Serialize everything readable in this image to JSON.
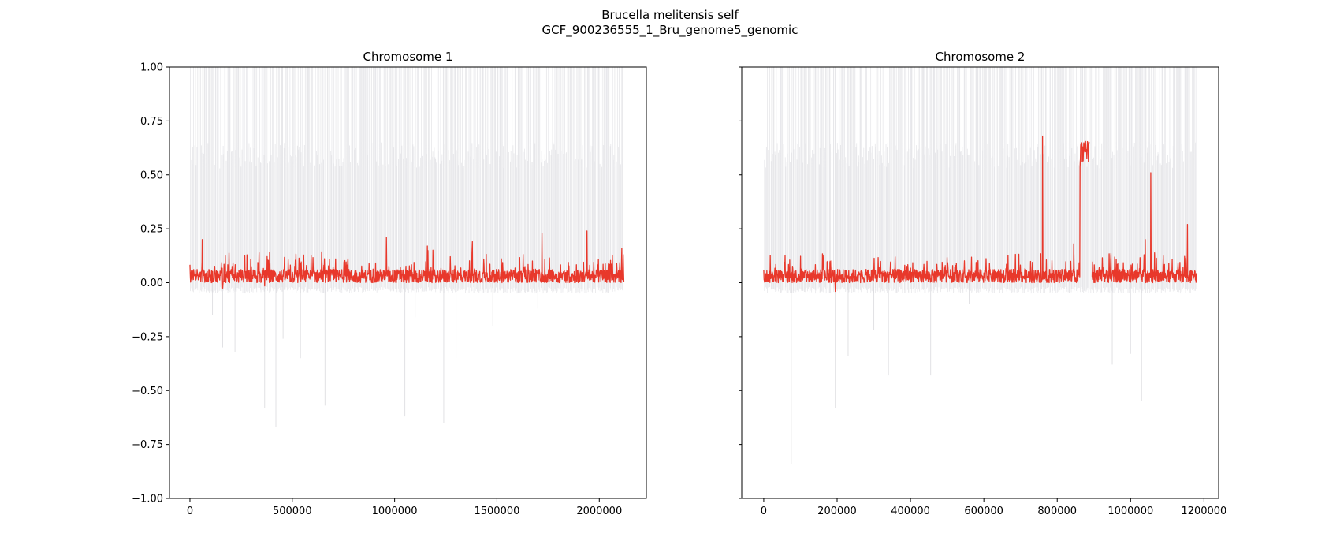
{
  "figure": {
    "title_line1": "Brucella melitensis self",
    "title_line2": "GCF_900236555_1_Bru_genome5_genomic"
  },
  "colors": {
    "signal": "#e8382b",
    "background_band": "#d4d4d8",
    "axis": "#000000"
  },
  "chart_data": [
    {
      "type": "line",
      "title": "Chromosome 1",
      "xlabel": "",
      "ylabel": "",
      "xlim": [
        -100000,
        2230000
      ],
      "ylim": [
        -1.0,
        1.0
      ],
      "x_ticks": [
        0,
        500000,
        1000000,
        1500000,
        2000000
      ],
      "x_tick_labels": [
        "0",
        "500000",
        "1000000",
        "1500000",
        "2000000"
      ],
      "y_ticks": [
        -1.0,
        -0.75,
        -0.5,
        -0.25,
        0.0,
        0.25,
        0.5,
        0.75,
        1.0
      ],
      "y_tick_labels": [
        "−1.00",
        "−0.75",
        "−0.50",
        "−0.25",
        "0.00",
        "0.25",
        "0.50",
        "0.75",
        "1.00"
      ],
      "grid": false,
      "x_range": [
        0,
        2120000
      ],
      "series": [
        {
          "role": "red-signal",
          "baseline": 0.03,
          "noise_amplitude": 0.07,
          "peaks": [
            {
              "x": 60000,
              "y": 0.2
            },
            {
              "x": 160000,
              "y": -0.025
            },
            {
              "x": 365000,
              "y": -0.015
            },
            {
              "x": 960000,
              "y": 0.21
            },
            {
              "x": 1160000,
              "y": 0.17
            },
            {
              "x": 1380000,
              "y": 0.19
            },
            {
              "x": 1720000,
              "y": 0.23
            },
            {
              "x": 1940000,
              "y": 0.24
            },
            {
              "x": 2110000,
              "y": 0.16
            }
          ]
        },
        {
          "role": "grey-band",
          "band_top": 0.65,
          "spike_top": 1.0,
          "negative_spikes": [
            {
              "x": 110000,
              "y": -0.15
            },
            {
              "x": 160000,
              "y": -0.3
            },
            {
              "x": 220000,
              "y": -0.32
            },
            {
              "x": 365000,
              "y": -0.58
            },
            {
              "x": 420000,
              "y": -0.67
            },
            {
              "x": 455000,
              "y": -0.26
            },
            {
              "x": 540000,
              "y": -0.35
            },
            {
              "x": 660000,
              "y": -0.57
            },
            {
              "x": 1050000,
              "y": -0.62
            },
            {
              "x": 1100000,
              "y": -0.16
            },
            {
              "x": 1240000,
              "y": -0.65
            },
            {
              "x": 1300000,
              "y": -0.35
            },
            {
              "x": 1480000,
              "y": -0.2
            },
            {
              "x": 1700000,
              "y": -0.12
            },
            {
              "x": 1920000,
              "y": -0.43
            }
          ]
        }
      ]
    },
    {
      "type": "line",
      "title": "Chromosome 2",
      "xlabel": "",
      "ylabel": "",
      "xlim": [
        -60000,
        1240000
      ],
      "ylim": [
        -1.0,
        1.0
      ],
      "x_ticks": [
        0,
        200000,
        400000,
        600000,
        800000,
        1000000,
        1200000
      ],
      "x_tick_labels": [
        "0",
        "200000",
        "400000",
        "600000",
        "800000",
        "1000000",
        "1200000"
      ],
      "y_ticks": [
        -1.0,
        -0.75,
        -0.5,
        -0.25,
        0.0,
        0.25,
        0.5,
        0.75,
        1.0
      ],
      "y_tick_labels": [],
      "grid": false,
      "x_range": [
        0,
        1180000
      ],
      "series": [
        {
          "role": "red-signal",
          "baseline": 0.03,
          "noise_amplitude": 0.07,
          "plateau": {
            "x_start": 862000,
            "x_end": 888000,
            "y": 0.63
          },
          "gap": {
            "x_start": 888000,
            "x_end": 895000
          },
          "peaks": [
            {
              "x": 195000,
              "y": -0.04
            },
            {
              "x": 760000,
              "y": 0.68
            },
            {
              "x": 1055000,
              "y": 0.51
            },
            {
              "x": 1155000,
              "y": 0.27
            },
            {
              "x": 845000,
              "y": 0.18
            },
            {
              "x": 1040000,
              "y": 0.2
            }
          ]
        },
        {
          "role": "grey-band",
          "band_top": 0.65,
          "spike_top": 1.0,
          "negative_spikes": [
            {
              "x": 75000,
              "y": -0.84
            },
            {
              "x": 195000,
              "y": -0.58
            },
            {
              "x": 230000,
              "y": -0.34
            },
            {
              "x": 300000,
              "y": -0.22
            },
            {
              "x": 340000,
              "y": -0.43
            },
            {
              "x": 455000,
              "y": -0.43
            },
            {
              "x": 560000,
              "y": -0.1
            },
            {
              "x": 950000,
              "y": -0.38
            },
            {
              "x": 1000000,
              "y": -0.33
            },
            {
              "x": 1030000,
              "y": -0.55
            },
            {
              "x": 1110000,
              "y": -0.07
            }
          ]
        }
      ]
    }
  ]
}
